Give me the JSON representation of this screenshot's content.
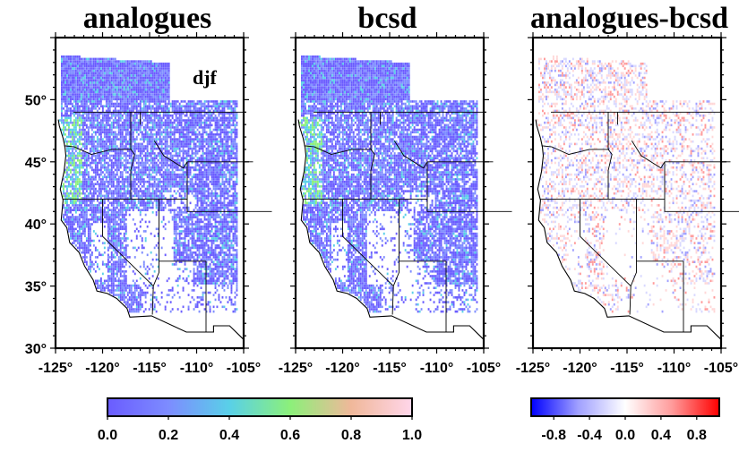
{
  "panels": [
    {
      "title": "analogues",
      "kind": "sequential"
    },
    {
      "title": "bcsd",
      "kind": "sequential"
    },
    {
      "title": "analogues-bcsd",
      "kind": "diverging"
    }
  ],
  "season_label": "djf",
  "lat_ticks": [
    "50°",
    "45°",
    "40°",
    "35°",
    "30°"
  ],
  "lon_ticks": [
    "-125°",
    "-120°",
    "-115°",
    "-110°",
    "-105°"
  ],
  "colorbar_sequential": {
    "ticks": [
      "0.0",
      "0.2",
      "0.4",
      "0.6",
      "0.8",
      "1.0"
    ],
    "colors": [
      "#6a5cff",
      "#7d8cff",
      "#59d0e8",
      "#8cf07a",
      "#f0b89a",
      "#ffd6ea"
    ]
  },
  "colorbar_diverging": {
    "ticks": [
      "-0.8",
      "-0.4",
      "0.0",
      "0.4",
      "0.8"
    ],
    "colors": [
      "#0000ff",
      "#a0a0ff",
      "#ffffff",
      "#ff9a9a",
      "#ff0000"
    ]
  }
}
